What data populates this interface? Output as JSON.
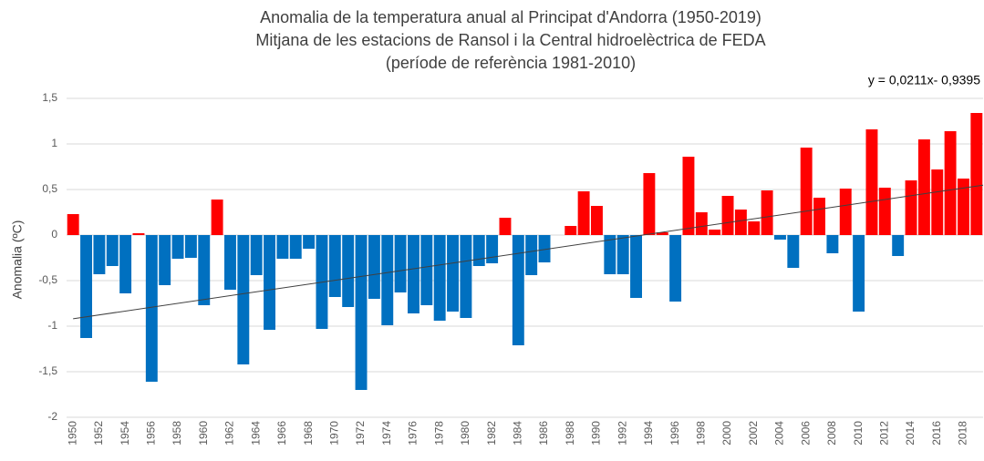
{
  "chart_data": {
    "type": "bar",
    "title": [
      "Anomalia de la temperatura anual al Principat d'Andorra (1950-2019)",
      "Mitjana de les estacions de Ransol i la Central hidroelèctrica de FEDA",
      "(període de referència 1981-2010)"
    ],
    "y_label": "Anomalia (ºC)",
    "categories": [
      "1950",
      null,
      "1952",
      null,
      "1954",
      null,
      "1956",
      null,
      "1958",
      null,
      "1960",
      null,
      "1962",
      null,
      "1964",
      null,
      "1966",
      null,
      "1968",
      null,
      "1970",
      null,
      "1972",
      null,
      "1974",
      null,
      "1976",
      null,
      "1978",
      null,
      "1980",
      null,
      "1982",
      null,
      "1984",
      null,
      "1986",
      null,
      "1988",
      null,
      "1990",
      null,
      "1992",
      null,
      "1994",
      null,
      "1996",
      null,
      "1998",
      null,
      "2000",
      null,
      "2002",
      null,
      "2004",
      null,
      "2006",
      null,
      "2008",
      null,
      "2010",
      null,
      "2012",
      null,
      "2014",
      null,
      "2016",
      null,
      "2018",
      null
    ],
    "values": [
      0.23,
      -1.13,
      -0.43,
      -0.34,
      -0.64,
      0.02,
      -1.61,
      -0.55,
      -0.26,
      -0.25,
      -0.77,
      0.39,
      -0.6,
      -1.42,
      -0.44,
      -1.04,
      -0.26,
      -0.26,
      -0.15,
      -1.03,
      -0.68,
      -0.79,
      -1.7,
      -0.7,
      -0.99,
      -0.63,
      -0.86,
      -0.77,
      -0.94,
      -0.84,
      -0.91,
      -0.34,
      -0.31,
      0.19,
      -1.21,
      -0.44,
      -0.3,
      0,
      0.1,
      0.48,
      0.32,
      -0.43,
      -0.43,
      -0.69,
      0.68,
      0.03,
      -0.73,
      0.86,
      0.25,
      0.06,
      0.43,
      0.28,
      0.15,
      0.49,
      -0.05,
      -0.36,
      0.96,
      0.41,
      -0.2,
      0.51,
      -0.84,
      1.16,
      0.52,
      -0.23,
      0.6,
      1.05,
      0.72,
      1.14,
      0.62,
      1.34
    ],
    "positive_color": "#ff0000",
    "negative_color": "#0070c0",
    "ylim": [
      -2,
      1.5
    ],
    "yticks": [
      {
        "value": -2,
        "label": "-2"
      },
      {
        "value": -1.5,
        "label": "-1,5"
      },
      -1,
      {
        "value": -0.5,
        "label": "-0,5"
      },
      0,
      {
        "value": 0.5,
        "label": "0,5"
      },
      1,
      {
        "value": 1.5,
        "label": "1,5"
      }
    ],
    "grid": true,
    "trendline": {
      "label": "y = 0,0211x- 0,9395",
      "slope": 0.0211,
      "intercept": -0.9395,
      "color": "#404040"
    }
  }
}
